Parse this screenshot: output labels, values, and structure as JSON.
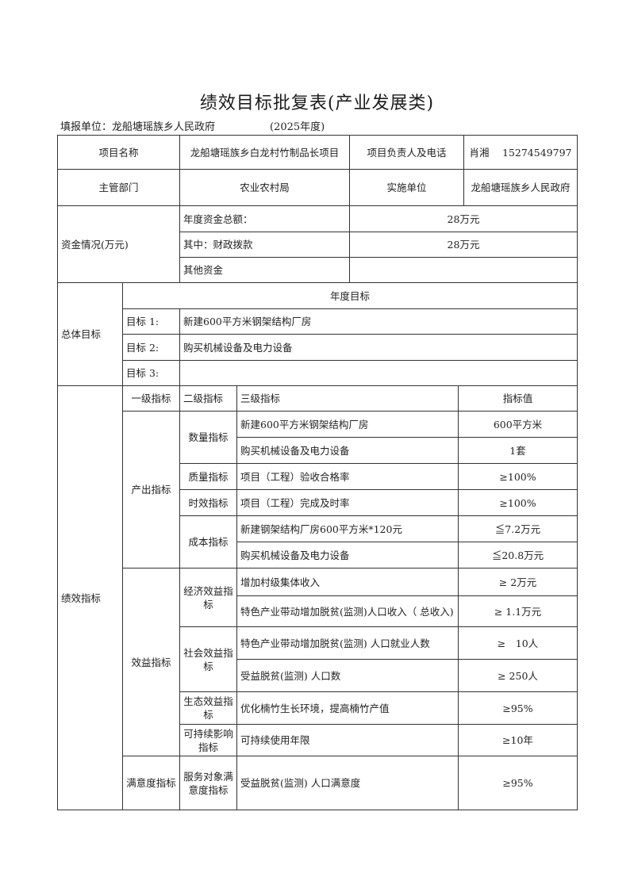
{
  "title": "绩效目标批复表(产业发展类)",
  "fill_unit": "填报单位：龙船塘瑶族乡人民政府",
  "year": "(2025年度)",
  "project": {
    "name_label": "项目名称",
    "name_value": "龙船塘瑶族乡白龙村竹制品长项目",
    "owner_label": "项目负责人及电话",
    "owner_value": "肖湘　 15274549797",
    "dept_label": "主管部门",
    "dept_value": "农业农村局",
    "impl_label": "实施单位",
    "impl_value": "龙船塘瑶族乡人民政府"
  },
  "funds": {
    "label": "资金情况(万元)",
    "total_label": "年度资金总额：",
    "total_value": "28万元",
    "fiscal_label": "其中：财政拨款",
    "fiscal_value": "28万元",
    "other_label": "其他资金",
    "other_value": ""
  },
  "goals": {
    "label": "总体目标",
    "header": "年度目标",
    "items": [
      {
        "label": "目标 1:",
        "value": "新建600平方米钢架结构厂房"
      },
      {
        "label": "目标 2:",
        "value": "购买机械设备及电力设备"
      },
      {
        "label": "目标 3:",
        "value": ""
      }
    ]
  },
  "perf": {
    "label": "绩效指标",
    "headers": [
      "一级指标",
      "二级指标",
      "三级指标",
      "指标值"
    ],
    "level1": [
      "产出指标",
      "效益指标",
      "满意度指标"
    ],
    "level2": [
      "数量指标",
      "质量指标",
      "时效指标",
      "成本指标",
      "经济效益指标",
      "社会效益指标",
      "生态效益指标",
      "可持续影响指标",
      "服务对象满意度指标"
    ],
    "rows": [
      {
        "indicator": "新建600平方米钢架结构厂房",
        "value": "600平方米"
      },
      {
        "indicator": "购买机械设备及电力设备",
        "value": "1套"
      },
      {
        "indicator": "项目（工程）验收合格率",
        "value": "≥100%"
      },
      {
        "indicator": "项目（工程）完成及时率",
        "value": "≥100%"
      },
      {
        "indicator": "新建钢架结构厂房600平方米*120元",
        "value": "≦7.2万元"
      },
      {
        "indicator": "购买机械设备及电力设备",
        "value": "≦20.8万元"
      },
      {
        "indicator": "增加村级集体收入",
        "value": "≥ 2万元"
      },
      {
        "indicator": "特色产业带动增加脱贫(监测)人口收入（ 总收入)",
        "value": "≥ 1.1万元"
      },
      {
        "indicator": "特色产业带动增加脱贫(监测) 人口就业人数",
        "value": "≥　10人"
      },
      {
        "indicator": "受益脱贫(监测) 人口数",
        "value": "≥ 250人"
      },
      {
        "indicator": "优化楠竹生长环境，提高楠竹产值",
        "value": "≥95%"
      },
      {
        "indicator": "可持续使用年限",
        "value": "≥10年"
      },
      {
        "indicator": "受益脱贫(监测) 人口满意度",
        "value": "≥95%"
      }
    ]
  }
}
